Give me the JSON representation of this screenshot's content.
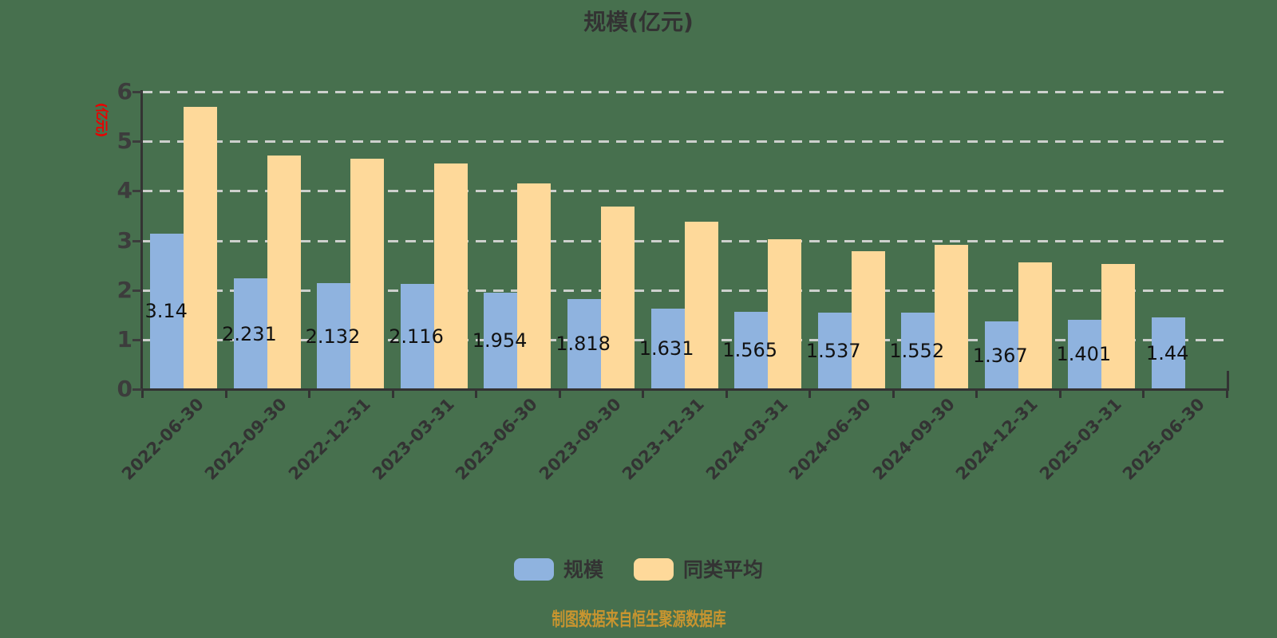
{
  "title": "规模(亿元)",
  "y_axis": {
    "unit_label": "(亿元)",
    "ticks": [
      0,
      1,
      2,
      3,
      4,
      5,
      6
    ]
  },
  "legend": {
    "items": [
      {
        "label": "规模",
        "color": "#8FB3DF"
      },
      {
        "label": "同类平均",
        "color": "#FED99A"
      }
    ]
  },
  "footer": {
    "text": "制图数据来自恒生聚源数据库"
  },
  "colors": {
    "background": "#47704E",
    "bar_blue": "#8FB3DF",
    "bar_yellow": "#FED99A",
    "axis": "#333333",
    "gridline": "#CDD0CD",
    "tick_label": "#3C3C3C",
    "value_label": "#111111",
    "unit_label_red": "#EA0000",
    "footer_gold": "#C9952F",
    "title": "#333333",
    "legend_text": "#333333"
  },
  "chart_data": {
    "type": "bar",
    "title": "规模(亿元)",
    "categories": [
      "2022-06-30",
      "2022-09-30",
      "2022-12-31",
      "2023-03-31",
      "2023-06-30",
      "2023-09-30",
      "2023-12-31",
      "2024-03-31",
      "2024-06-30",
      "2024-09-30",
      "2024-12-31",
      "2025-03-31",
      "2025-06-30"
    ],
    "series": [
      {
        "name": "规模",
        "color": "#8FB3DF",
        "values": [
          3.14,
          2.231,
          2.132,
          2.116,
          1.954,
          1.818,
          1.631,
          1.565,
          1.537,
          1.552,
          1.367,
          1.401,
          1.44
        ],
        "value_labels": [
          "3.14",
          "2.231",
          "2.132",
          "2.116",
          "1.954",
          "1.818",
          "1.631",
          "1.565",
          "1.537",
          "1.552",
          "1.367",
          "1.401",
          "1.44"
        ]
      },
      {
        "name": "同类平均",
        "color": "#FED99A",
        "values": [
          5.69,
          4.71,
          4.65,
          4.56,
          4.15,
          3.68,
          3.38,
          3.02,
          2.79,
          2.91,
          2.55,
          2.52,
          null
        ]
      }
    ],
    "ylim": [
      0,
      6
    ],
    "yticks": [
      0,
      1,
      2,
      3,
      4,
      5,
      6
    ],
    "grid": "dashed horizontal, behind bars",
    "legend_position": "bottom center",
    "xlabel_rotation": 45
  }
}
